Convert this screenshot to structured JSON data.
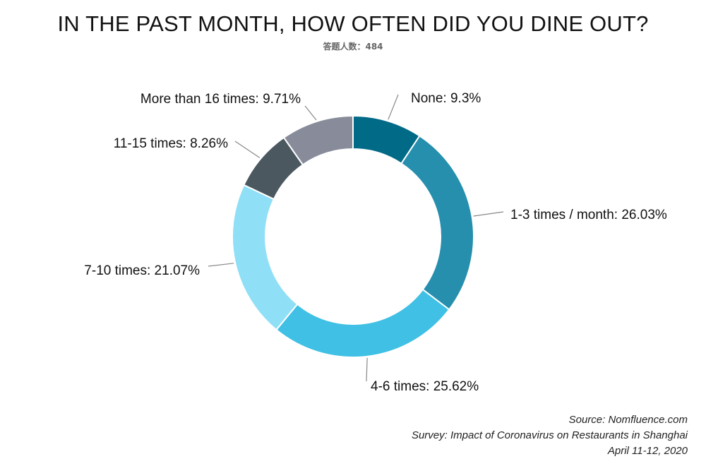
{
  "chart_data": {
    "type": "pie",
    "title": "IN THE PAST MONTH, HOW OFTEN DID YOU DINE OUT?",
    "subtitle": "答题人数：484",
    "categories": [
      "None",
      "1-3 times / month",
      "4-6 times",
      "7-10 times",
      "11-15 times",
      "More than 16 times"
    ],
    "values": [
      9.3,
      26.03,
      25.62,
      21.07,
      8.26,
      9.71
    ],
    "labels": [
      "None: 9.3%",
      "1-3 times / month: 26.03%",
      "4-6 times: 25.62%",
      "7-10 times: 21.07%",
      "11-15 times: 8.26%",
      "More than 16 times: 9.71%"
    ],
    "colors": [
      "#006a87",
      "#268fae",
      "#3fc0e4",
      "#8fdff6",
      "#4b5860",
      "#888c9a"
    ],
    "donut": true
  },
  "source": {
    "line1": "Source: Nomfluence.com",
    "line2": "Survey: Impact of Coronavirus on Restaurants in Shanghai",
    "line3": "April 11-12, 2020"
  }
}
